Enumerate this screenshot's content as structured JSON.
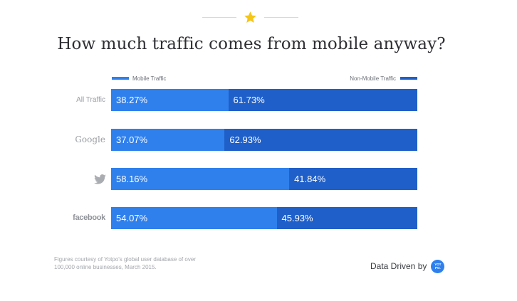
{
  "title": "How much traffic comes from mobile anyway?",
  "colors": {
    "mobile": "#2f80ed",
    "non_mobile": "#1f5fc9",
    "star": "#f5c518",
    "logo": "#2f80ed"
  },
  "legend": {
    "mobile": "Mobile Traffic",
    "non_mobile": "Non-Mobile Traffic",
    "placement": "top"
  },
  "rows": [
    {
      "label": "All Traffic",
      "icon": ""
    },
    {
      "label": "Google",
      "icon": ""
    },
    {
      "label": "",
      "icon": "twitter-bird-icon"
    },
    {
      "label": "facebook",
      "icon": ""
    }
  ],
  "chart_data": {
    "type": "bar",
    "orientation": "horizontal",
    "stacked": true,
    "title": "How much traffic comes from mobile anyway?",
    "categories": [
      "All Traffic",
      "Google",
      "Twitter",
      "facebook"
    ],
    "series": [
      {
        "name": "Mobile Traffic",
        "values": [
          38.27,
          37.07,
          58.16,
          54.07
        ],
        "labels": [
          "38.27%",
          "37.07%",
          "58.16%",
          "54.07%"
        ]
      },
      {
        "name": "Non-Mobile Traffic",
        "values": [
          61.73,
          62.93,
          41.84,
          45.93
        ],
        "labels": [
          "61.73%",
          "62.93%",
          "41.84%",
          "45.93%"
        ]
      }
    ],
    "xlim": [
      0,
      100
    ],
    "unit": "%",
    "grid": false,
    "legend_position": "top"
  },
  "footer": {
    "note": "Figures courtesy of Yotpo's global user database of over 100,000 online businesses, March 2015.",
    "credit": "Data Driven by",
    "logo_text": "YOT PO."
  }
}
